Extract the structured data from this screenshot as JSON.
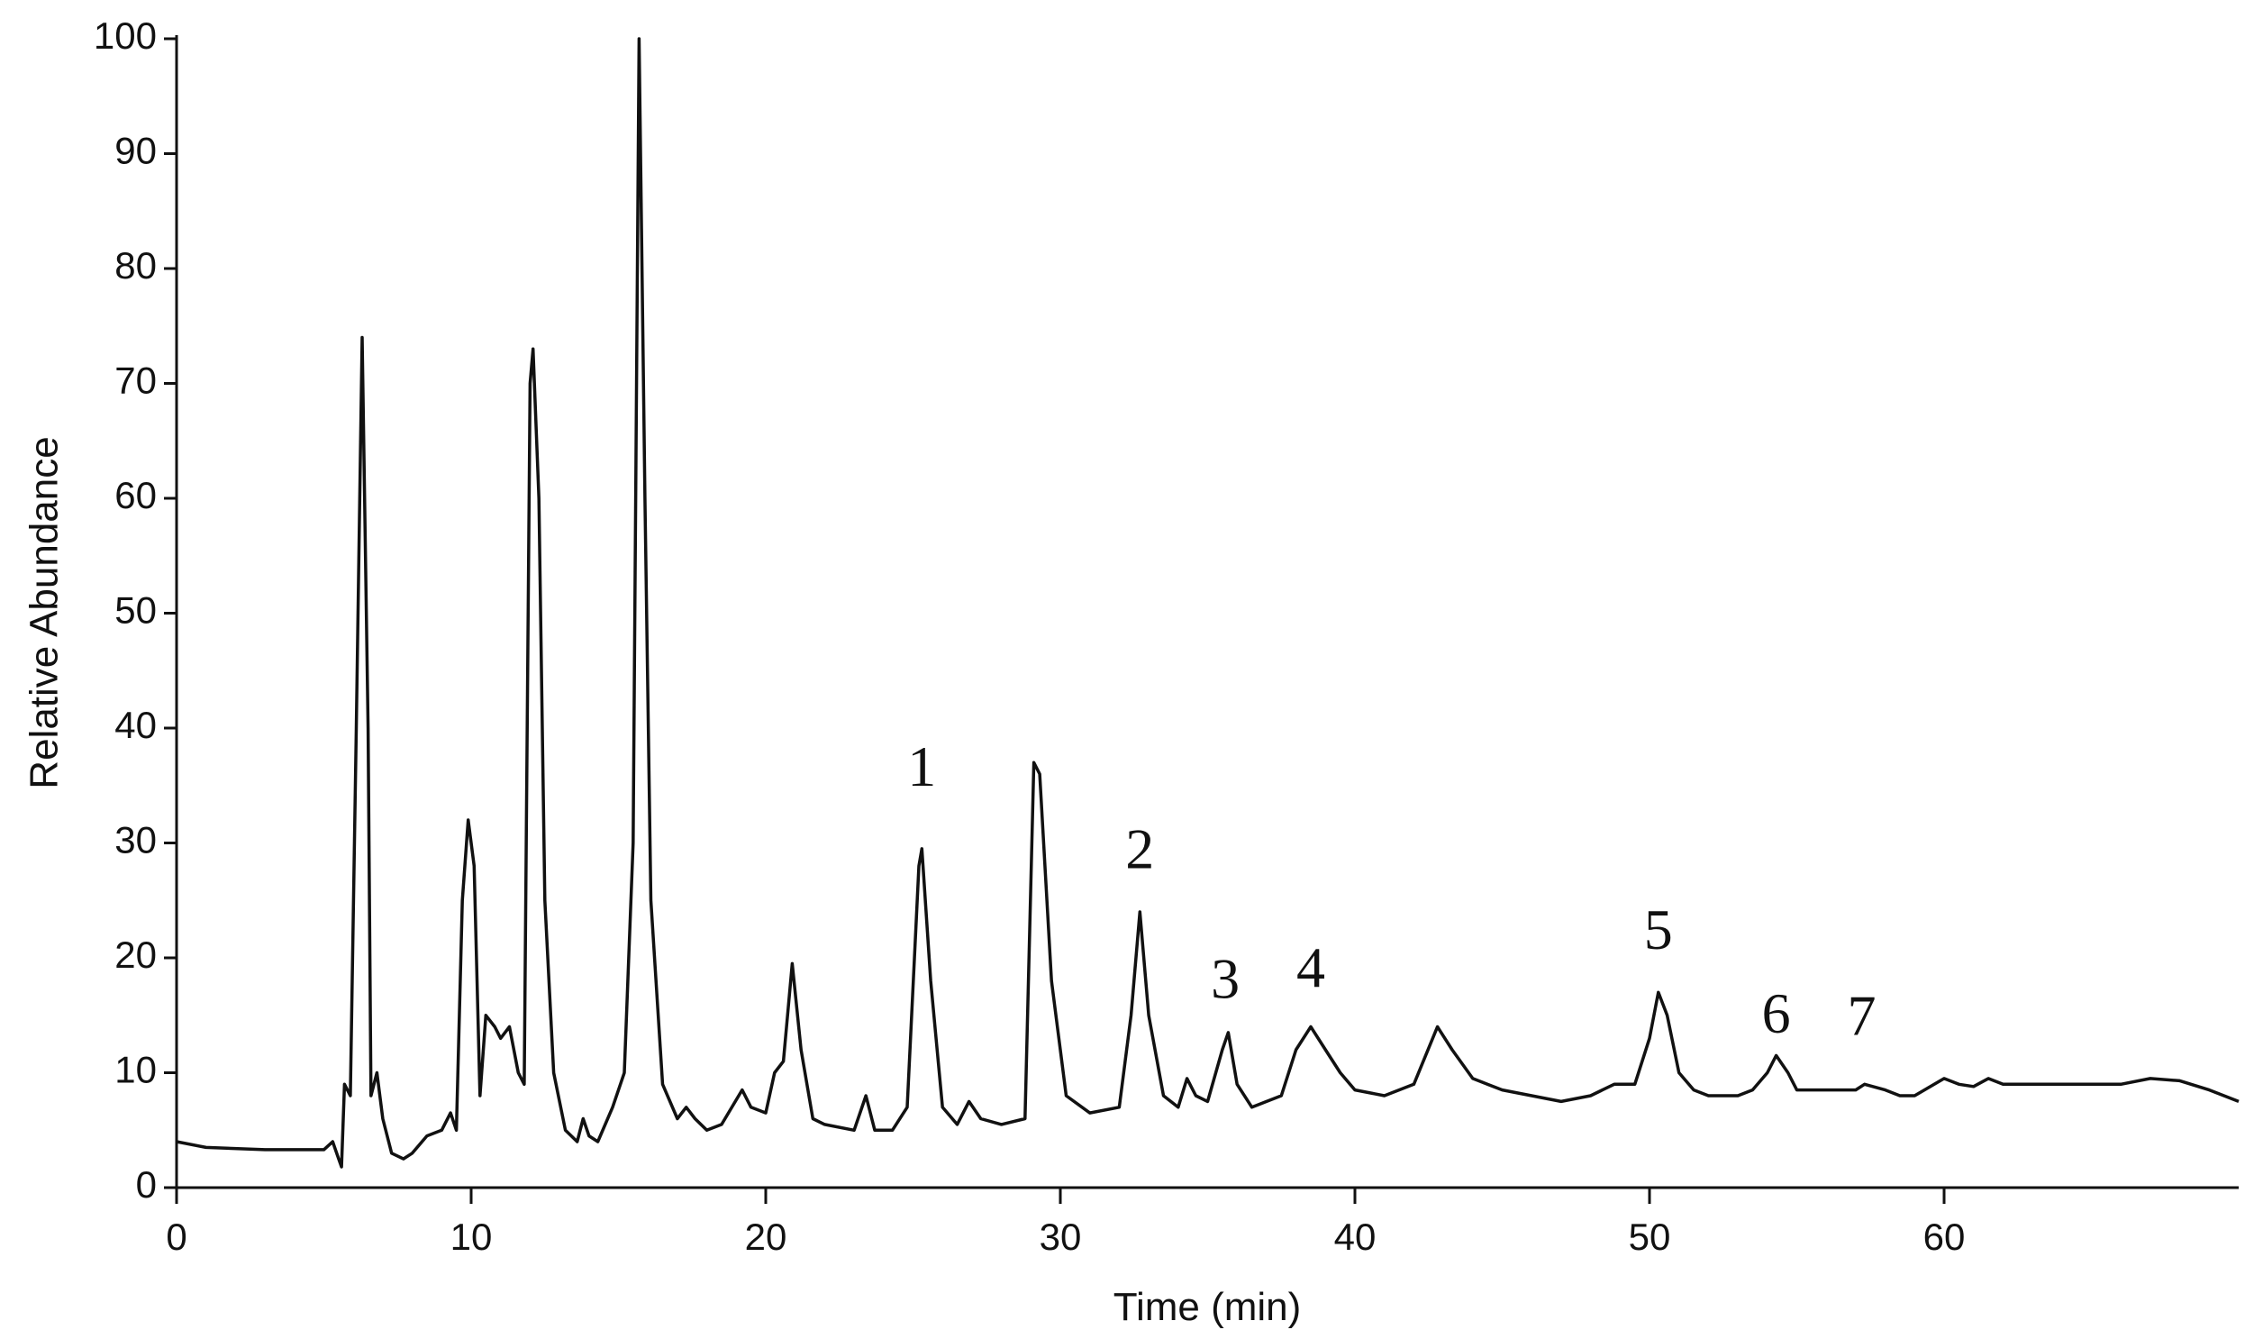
{
  "chart_data": {
    "type": "line",
    "xlabel": "Time (min)",
    "ylabel": "Relative Abundance",
    "xlim": [
      0,
      70
    ],
    "ylim": [
      0,
      100
    ],
    "xticks": [
      0,
      10,
      20,
      30,
      40,
      50,
      60
    ],
    "yticks": [
      0,
      10,
      20,
      30,
      40,
      50,
      60,
      70,
      80,
      90,
      100
    ],
    "color": "#111111",
    "x": [
      0,
      1,
      3,
      5,
      5.3,
      5.5,
      5.6,
      5.7,
      5.9,
      6.1,
      6.3,
      6.5,
      6.6,
      6.8,
      7,
      7.3,
      7.7,
      8,
      8.5,
      9,
      9.3,
      9.5,
      9.7,
      9.9,
      10.1,
      10.3,
      10.5,
      10.8,
      11,
      11.3,
      11.6,
      11.8,
      12,
      12.1,
      12.3,
      12.5,
      12.8,
      13.2,
      13.6,
      13.8,
      14,
      14.3,
      14.8,
      15.2,
      15.5,
      15.7,
      15.9,
      16.1,
      16.5,
      17,
      17.3,
      17.6,
      18,
      18.5,
      19.2,
      19.5,
      20,
      20.3,
      20.6,
      20.9,
      21.2,
      21.6,
      22,
      23,
      23.4,
      23.7,
      24.3,
      24.8,
      25.2,
      25.3,
      25.6,
      26,
      26.5,
      26.9,
      27.3,
      28,
      28.8,
      29.1,
      29.3,
      29.7,
      30.2,
      31,
      32,
      32.4,
      32.7,
      33,
      33.5,
      34,
      34.3,
      34.6,
      35,
      35.5,
      35.7,
      36,
      36.5,
      37,
      37.5,
      38,
      38.5,
      39,
      39.5,
      40,
      41,
      42,
      42.8,
      43.3,
      44,
      45,
      46,
      47,
      48,
      48.8,
      49.5,
      50,
      50.3,
      50.6,
      51,
      51.5,
      52,
      53,
      53.5,
      54,
      54.3,
      54.7,
      55,
      56,
      57,
      57.3,
      58,
      58.5,
      59,
      60,
      60.5,
      61,
      61.5,
      62,
      63,
      64,
      65,
      66,
      67,
      68,
      69,
      70
    ],
    "y": [
      4,
      3.5,
      3.3,
      3.3,
      4,
      2.5,
      1.8,
      9,
      8,
      40,
      74,
      40,
      8,
      10,
      6,
      3,
      2.5,
      3,
      4.5,
      5,
      6.5,
      5,
      25,
      32,
      28,
      8,
      15,
      14,
      13,
      14,
      10,
      9,
      70,
      73,
      60,
      25,
      10,
      5,
      4,
      6,
      4.5,
      4,
      7,
      10,
      30,
      100,
      60,
      25,
      9,
      6,
      7,
      6,
      5,
      5.5,
      8.5,
      7,
      6.5,
      10,
      11,
      19.5,
      12,
      6,
      5.5,
      5,
      8,
      5,
      5,
      7,
      28,
      29.5,
      18,
      7,
      5.5,
      7.5,
      6,
      5.5,
      6,
      37,
      36,
      18,
      8,
      6.5,
      7,
      15,
      24,
      15,
      8,
      7,
      9.5,
      8,
      7.5,
      12,
      13.5,
      9,
      7,
      7.5,
      8,
      12,
      14,
      12,
      10,
      8.5,
      8,
      9,
      14,
      12,
      9.5,
      8.5,
      8,
      7.5,
      8,
      9,
      9,
      13,
      17,
      15,
      10,
      8.5,
      8,
      8,
      8.5,
      10,
      11.5,
      10,
      8.5,
      8.5,
      8.5,
      9,
      8.5,
      8,
      8,
      9.5,
      9,
      8.8,
      9.5,
      9,
      9,
      9,
      9,
      9,
      9.5,
      9.3,
      8.5,
      7.5
    ],
    "annotations": [
      {
        "text": "1",
        "x": 25.3,
        "y": 35
      },
      {
        "text": "2",
        "x": 32.7,
        "y": 27.8
      },
      {
        "text": "3",
        "x": 35.6,
        "y": 16.5
      },
      {
        "text": "4",
        "x": 38.5,
        "y": 17.5
      },
      {
        "text": "5",
        "x": 50.3,
        "y": 20.8
      },
      {
        "text": "6",
        "x": 54.3,
        "y": 13.5
      },
      {
        "text": "7",
        "x": 57.2,
        "y": 13.3
      }
    ]
  }
}
